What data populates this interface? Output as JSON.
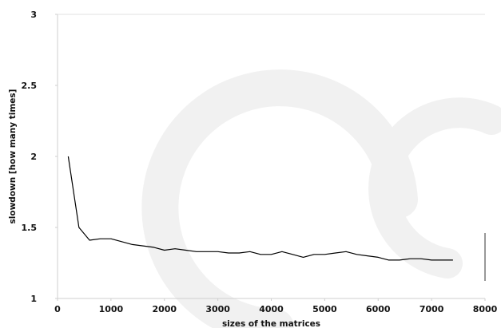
{
  "chart_data": {
    "type": "line",
    "title": "",
    "xlabel": "sizes of the matrices",
    "ylabel": "slowdown [how many times]",
    "xlim": [
      0,
      8000
    ],
    "ylim": [
      1,
      3
    ],
    "x_ticks": [
      "0",
      "1000",
      "2000",
      "3000",
      "4000",
      "5000",
      "6000",
      "7000",
      "8000"
    ],
    "y_ticks": [
      "1",
      "1.5",
      "2",
      "2.5",
      "3"
    ],
    "grid": false,
    "legend": "none",
    "watermark": "CS",
    "series": [
      {
        "color": "#000000",
        "x": [
          200,
          400,
          600,
          800,
          1000,
          1200,
          1400,
          1600,
          1800,
          2000,
          2200,
          2400,
          2600,
          2800,
          3000,
          3200,
          3400,
          3600,
          3800,
          4000,
          4200,
          4400,
          4600,
          4800,
          5000,
          5200,
          5400,
          5600,
          5800,
          6000,
          6200,
          6400,
          6600,
          6800,
          7000,
          7200,
          7400
        ],
        "y": [
          2.0,
          1.5,
          1.41,
          1.42,
          1.42,
          1.4,
          1.38,
          1.37,
          1.36,
          1.34,
          1.35,
          1.34,
          1.33,
          1.33,
          1.33,
          1.32,
          1.32,
          1.33,
          1.31,
          1.31,
          1.33,
          1.31,
          1.29,
          1.31,
          1.31,
          1.32,
          1.33,
          1.31,
          1.3,
          1.29,
          1.27,
          1.27,
          1.28,
          1.28,
          1.27,
          1.27,
          1.27
        ]
      }
    ]
  }
}
